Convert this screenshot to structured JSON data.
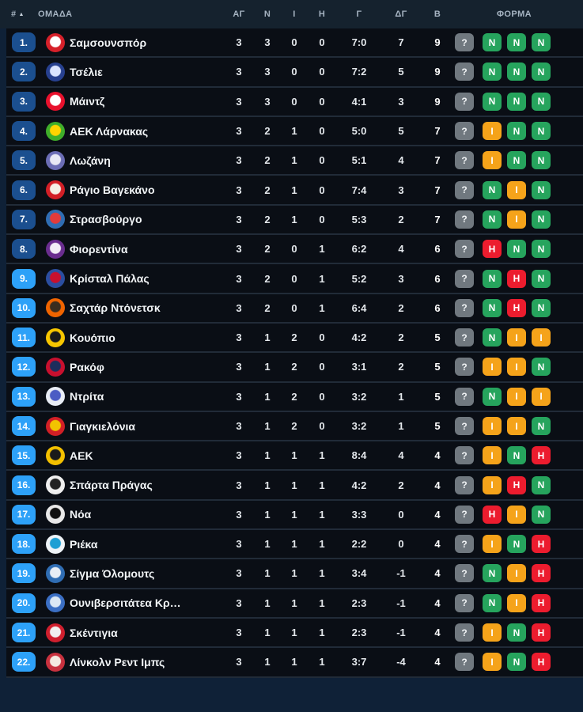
{
  "table": {
    "columns": {
      "position": "#",
      "team": "ΟΜΑΔΑ",
      "played": "ΑΓ",
      "wins": "Ν",
      "draws": "Ι",
      "losses": "Η",
      "goals": "Γ",
      "goal_diff": "ΔΓ",
      "points": "Β",
      "form": "ΦΟΡΜΑ"
    },
    "sort": {
      "column": "position",
      "direction": "ascending",
      "icon": "▲"
    },
    "rows": [
      {
        "pos": "1.",
        "zone": "top",
        "team": "Σαμσουνσπόρ",
        "played": "3",
        "wins": "3",
        "draws": "0",
        "losses": "0",
        "goals": "7:0",
        "gd": "7",
        "pts": "9",
        "logo": [
          "#d6202a",
          "#ffffff"
        ],
        "form": [
          {
            "label": "?",
            "type": "unknown"
          },
          {
            "label": "Ν",
            "type": "win"
          },
          {
            "label": "Ν",
            "type": "win"
          },
          {
            "label": "Ν",
            "type": "win"
          }
        ]
      },
      {
        "pos": "2.",
        "zone": "top",
        "team": "Τσέλιε",
        "played": "3",
        "wins": "3",
        "draws": "0",
        "losses": "0",
        "goals": "7:2",
        "gd": "5",
        "pts": "9",
        "logo": [
          "#27408f",
          "#dbe4ff"
        ],
        "form": [
          {
            "label": "?",
            "type": "unknown"
          },
          {
            "label": "Ν",
            "type": "win"
          },
          {
            "label": "Ν",
            "type": "win"
          },
          {
            "label": "Ν",
            "type": "win"
          }
        ]
      },
      {
        "pos": "3.",
        "zone": "top",
        "team": "Μάιντζ",
        "played": "3",
        "wins": "3",
        "draws": "0",
        "losses": "0",
        "goals": "4:1",
        "gd": "3",
        "pts": "9",
        "logo": [
          "#e8112d",
          "#ffffff"
        ],
        "form": [
          {
            "label": "?",
            "type": "unknown"
          },
          {
            "label": "Ν",
            "type": "win"
          },
          {
            "label": "Ν",
            "type": "win"
          },
          {
            "label": "Ν",
            "type": "win"
          }
        ]
      },
      {
        "pos": "4.",
        "zone": "top",
        "team": "ΑΕΚ Λάρνακας",
        "played": "3",
        "wins": "2",
        "draws": "1",
        "losses": "0",
        "goals": "5:0",
        "gd": "5",
        "pts": "7",
        "logo": [
          "#3fae2a",
          "#ffd400"
        ],
        "form": [
          {
            "label": "?",
            "type": "unknown"
          },
          {
            "label": "Ι",
            "type": "draw"
          },
          {
            "label": "Ν",
            "type": "win"
          },
          {
            "label": "Ν",
            "type": "win"
          }
        ]
      },
      {
        "pos": "5.",
        "zone": "top",
        "team": "Λωζάνη",
        "played": "3",
        "wins": "2",
        "draws": "1",
        "losses": "0",
        "goals": "5:1",
        "gd": "4",
        "pts": "7",
        "logo": [
          "#6b6db5",
          "#e8e9f5"
        ],
        "form": [
          {
            "label": "?",
            "type": "unknown"
          },
          {
            "label": "Ι",
            "type": "draw"
          },
          {
            "label": "Ν",
            "type": "win"
          },
          {
            "label": "Ν",
            "type": "win"
          }
        ]
      },
      {
        "pos": "6.",
        "zone": "top",
        "team": "Ράγιο Βαγεκάνο",
        "played": "3",
        "wins": "2",
        "draws": "1",
        "losses": "0",
        "goals": "7:4",
        "gd": "3",
        "pts": "7",
        "logo": [
          "#d21f26",
          "#f5f0e6"
        ],
        "form": [
          {
            "label": "?",
            "type": "unknown"
          },
          {
            "label": "Ν",
            "type": "win"
          },
          {
            "label": "Ι",
            "type": "draw"
          },
          {
            "label": "Ν",
            "type": "win"
          }
        ]
      },
      {
        "pos": "7.",
        "zone": "top",
        "team": "Στρασβούργο",
        "played": "3",
        "wins": "2",
        "draws": "1",
        "losses": "0",
        "goals": "5:3",
        "gd": "2",
        "pts": "7",
        "logo": [
          "#2f6db3",
          "#e23b3b"
        ],
        "form": [
          {
            "label": "?",
            "type": "unknown"
          },
          {
            "label": "Ν",
            "type": "win"
          },
          {
            "label": "Ι",
            "type": "draw"
          },
          {
            "label": "Ν",
            "type": "win"
          }
        ]
      },
      {
        "pos": "8.",
        "zone": "top",
        "team": "Φιορεντίνα",
        "played": "3",
        "wins": "2",
        "draws": "0",
        "losses": "1",
        "goals": "6:2",
        "gd": "4",
        "pts": "6",
        "logo": [
          "#6a2d8f",
          "#f3eef7"
        ],
        "form": [
          {
            "label": "?",
            "type": "unknown"
          },
          {
            "label": "Η",
            "type": "loss"
          },
          {
            "label": "Ν",
            "type": "win"
          },
          {
            "label": "Ν",
            "type": "win"
          }
        ]
      },
      {
        "pos": "9.",
        "zone": "playoff",
        "team": "Κρίσταλ Πάλας",
        "played": "3",
        "wins": "2",
        "draws": "0",
        "losses": "1",
        "goals": "5:2",
        "gd": "3",
        "pts": "6",
        "logo": [
          "#2b4ea0",
          "#c8102e"
        ],
        "form": [
          {
            "label": "?",
            "type": "unknown"
          },
          {
            "label": "Ν",
            "type": "win"
          },
          {
            "label": "Η",
            "type": "loss"
          },
          {
            "label": "Ν",
            "type": "win"
          }
        ]
      },
      {
        "pos": "10.",
        "zone": "playoff",
        "team": "Σαχτάρ Ντόνετσκ",
        "played": "3",
        "wins": "2",
        "draws": "0",
        "losses": "1",
        "goals": "6:4",
        "gd": "2",
        "pts": "6",
        "logo": [
          "#f06400",
          "#3a2c1e"
        ],
        "form": [
          {
            "label": "?",
            "type": "unknown"
          },
          {
            "label": "Ν",
            "type": "win"
          },
          {
            "label": "Η",
            "type": "loss"
          },
          {
            "label": "Ν",
            "type": "win"
          }
        ]
      },
      {
        "pos": "11.",
        "zone": "playoff",
        "team": "Κουόπιο",
        "played": "3",
        "wins": "1",
        "draws": "2",
        "losses": "0",
        "goals": "4:2",
        "gd": "2",
        "pts": "5",
        "logo": [
          "#f7c600",
          "#1a1a1a"
        ],
        "form": [
          {
            "label": "?",
            "type": "unknown"
          },
          {
            "label": "Ν",
            "type": "win"
          },
          {
            "label": "Ι",
            "type": "draw"
          },
          {
            "label": "Ι",
            "type": "draw"
          }
        ]
      },
      {
        "pos": "12.",
        "zone": "playoff",
        "team": "Ρακόφ",
        "played": "3",
        "wins": "1",
        "draws": "2",
        "losses": "0",
        "goals": "3:1",
        "gd": "2",
        "pts": "5",
        "logo": [
          "#c8102e",
          "#1d2d5c"
        ],
        "form": [
          {
            "label": "?",
            "type": "unknown"
          },
          {
            "label": "Ι",
            "type": "draw"
          },
          {
            "label": "Ι",
            "type": "draw"
          },
          {
            "label": "Ν",
            "type": "win"
          }
        ]
      },
      {
        "pos": "13.",
        "zone": "playoff",
        "team": "Ντρίτα",
        "played": "3",
        "wins": "1",
        "draws": "2",
        "losses": "0",
        "goals": "3:2",
        "gd": "1",
        "pts": "5",
        "logo": [
          "#e9edf5",
          "#4b5cc4"
        ],
        "form": [
          {
            "label": "?",
            "type": "unknown"
          },
          {
            "label": "Ν",
            "type": "win"
          },
          {
            "label": "Ι",
            "type": "draw"
          },
          {
            "label": "Ι",
            "type": "draw"
          }
        ]
      },
      {
        "pos": "14.",
        "zone": "playoff",
        "team": "Γιαγκιελόνια",
        "played": "3",
        "wins": "1",
        "draws": "2",
        "losses": "0",
        "goals": "3:2",
        "gd": "1",
        "pts": "5",
        "logo": [
          "#d21f26",
          "#f2c300"
        ],
        "form": [
          {
            "label": "?",
            "type": "unknown"
          },
          {
            "label": "Ι",
            "type": "draw"
          },
          {
            "label": "Ι",
            "type": "draw"
          },
          {
            "label": "Ν",
            "type": "win"
          }
        ]
      },
      {
        "pos": "15.",
        "zone": "playoff",
        "team": "ΑΕΚ",
        "played": "3",
        "wins": "1",
        "draws": "1",
        "losses": "1",
        "goals": "8:4",
        "gd": "4",
        "pts": "4",
        "logo": [
          "#f3c000",
          "#1a1a1a"
        ],
        "form": [
          {
            "label": "?",
            "type": "unknown"
          },
          {
            "label": "Ι",
            "type": "draw"
          },
          {
            "label": "Ν",
            "type": "win"
          },
          {
            "label": "Η",
            "type": "loss"
          }
        ]
      },
      {
        "pos": "16.",
        "zone": "playoff",
        "team": "Σπάρτα Πράγας",
        "played": "3",
        "wins": "1",
        "draws": "1",
        "losses": "1",
        "goals": "4:2",
        "gd": "2",
        "pts": "4",
        "logo": [
          "#efefef",
          "#222222"
        ],
        "form": [
          {
            "label": "?",
            "type": "unknown"
          },
          {
            "label": "Ι",
            "type": "draw"
          },
          {
            "label": "Η",
            "type": "loss"
          },
          {
            "label": "Ν",
            "type": "win"
          }
        ]
      },
      {
        "pos": "17.",
        "zone": "playoff",
        "team": "Νόα",
        "played": "3",
        "wins": "1",
        "draws": "1",
        "losses": "1",
        "goals": "3:3",
        "gd": "0",
        "pts": "4",
        "logo": [
          "#e8e8e8",
          "#111111"
        ],
        "form": [
          {
            "label": "?",
            "type": "unknown"
          },
          {
            "label": "Η",
            "type": "loss"
          },
          {
            "label": "Ι",
            "type": "draw"
          },
          {
            "label": "Ν",
            "type": "win"
          }
        ]
      },
      {
        "pos": "18.",
        "zone": "playoff",
        "team": "Ριέκα",
        "played": "3",
        "wins": "1",
        "draws": "1",
        "losses": "1",
        "goals": "2:2",
        "gd": "0",
        "pts": "4",
        "logo": [
          "#eef3f7",
          "#1e9fd4"
        ],
        "form": [
          {
            "label": "?",
            "type": "unknown"
          },
          {
            "label": "Ι",
            "type": "draw"
          },
          {
            "label": "Ν",
            "type": "win"
          },
          {
            "label": "Η",
            "type": "loss"
          }
        ]
      },
      {
        "pos": "19.",
        "zone": "playoff",
        "team": "Σίγμα Όλομουτς",
        "played": "3",
        "wins": "1",
        "draws": "1",
        "losses": "1",
        "goals": "3:4",
        "gd": "-1",
        "pts": "4",
        "logo": [
          "#2f6db3",
          "#e8eef5"
        ],
        "form": [
          {
            "label": "?",
            "type": "unknown"
          },
          {
            "label": "Ν",
            "type": "win"
          },
          {
            "label": "Ι",
            "type": "draw"
          },
          {
            "label": "Η",
            "type": "loss"
          }
        ]
      },
      {
        "pos": "20.",
        "zone": "playoff",
        "team": "Ουνιβερσιτάτεα Κρ…",
        "played": "3",
        "wins": "1",
        "draws": "1",
        "losses": "1",
        "goals": "2:3",
        "gd": "-1",
        "pts": "4",
        "logo": [
          "#3b6fc4",
          "#dce8f5"
        ],
        "form": [
          {
            "label": "?",
            "type": "unknown"
          },
          {
            "label": "Ν",
            "type": "win"
          },
          {
            "label": "Ι",
            "type": "draw"
          },
          {
            "label": "Η",
            "type": "loss"
          }
        ]
      },
      {
        "pos": "21.",
        "zone": "playoff",
        "team": "Σκέντιγια",
        "played": "3",
        "wins": "1",
        "draws": "1",
        "losses": "1",
        "goals": "2:3",
        "gd": "-1",
        "pts": "4",
        "logo": [
          "#cf1f2e",
          "#f0f0f0"
        ],
        "form": [
          {
            "label": "?",
            "type": "unknown"
          },
          {
            "label": "Ι",
            "type": "draw"
          },
          {
            "label": "Ν",
            "type": "win"
          },
          {
            "label": "Η",
            "type": "loss"
          }
        ]
      },
      {
        "pos": "22.",
        "zone": "playoff",
        "team": "Λίνκολν Ρεντ Ιμπς",
        "played": "3",
        "wins": "1",
        "draws": "1",
        "losses": "1",
        "goals": "3:7",
        "gd": "-4",
        "pts": "4",
        "logo": [
          "#c8313e",
          "#f4e9e0"
        ],
        "form": [
          {
            "label": "?",
            "type": "unknown"
          },
          {
            "label": "Ι",
            "type": "draw"
          },
          {
            "label": "Ν",
            "type": "win"
          },
          {
            "label": "Η",
            "type": "loss"
          }
        ]
      }
    ]
  },
  "colors": {
    "page_bg": "#0f2137",
    "header_bg": "#15222e",
    "row_bg": "#0a0e15",
    "separator": "#212b38",
    "position_top8": "#1b4f8f",
    "position_playoff": "#2da1f8",
    "form_win": "#26a45d",
    "form_draw": "#f5a31a",
    "form_loss": "#ec1c2e",
    "form_unknown": "#70787f"
  }
}
